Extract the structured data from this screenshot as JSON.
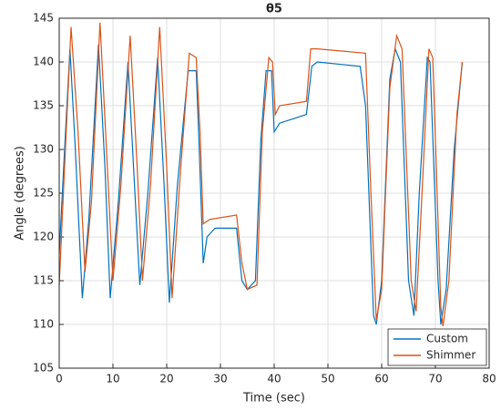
{
  "chart_data": {
    "type": "line",
    "title": "θ5",
    "xlabel": "Time (sec)",
    "ylabel": "Angle (degrees)",
    "xlim": [
      0,
      80
    ],
    "ylim": [
      105,
      145
    ],
    "xticks": [
      0,
      10,
      20,
      30,
      40,
      50,
      60,
      70,
      80
    ],
    "yticks": [
      105,
      110,
      115,
      120,
      125,
      130,
      135,
      140,
      145
    ],
    "grid": true,
    "legend": "southeast",
    "series": [
      {
        "name": "Custom",
        "color": "#0072BD",
        "x": [
          0,
          1,
          2,
          3,
          4.3,
          5.5,
          7.3,
          8.5,
          9.5,
          11,
          12.8,
          14,
          15,
          16.5,
          18.3,
          19.5,
          20.5,
          22,
          24,
          25.5,
          26,
          26.8,
          27.5,
          29,
          33,
          34,
          35,
          36.5,
          37.5,
          38.5,
          39.5,
          40,
          41,
          46,
          47,
          48,
          56,
          57,
          58.5,
          59,
          60,
          61.5,
          62.5,
          63.5,
          65,
          66,
          67,
          68.5,
          69,
          70.5,
          71,
          72,
          73.5,
          75
        ],
        "values": [
          118,
          130,
          141.5,
          130,
          113,
          122,
          142,
          128,
          113,
          124,
          140,
          126,
          114.5,
          125,
          140.5,
          126,
          112.5,
          126,
          139,
          139,
          131,
          117,
          120,
          121,
          121,
          115,
          114,
          115,
          131,
          139,
          139,
          132,
          133,
          134,
          139.5,
          140,
          139.5,
          135,
          111,
          110,
          115,
          138,
          141.5,
          140,
          115,
          111,
          125,
          140.5,
          140,
          115,
          110,
          114,
          130,
          140
        ]
      },
      {
        "name": "Shimmer",
        "color": "#D95319",
        "x": [
          0,
          1,
          2.2,
          3.5,
          4.8,
          6,
          7.6,
          8.8,
          10,
          11.5,
          13.2,
          14.5,
          15.5,
          17,
          18.7,
          20,
          21,
          22.5,
          24.2,
          25.5,
          26.2,
          26.8,
          28,
          33,
          34,
          35,
          36.8,
          37.8,
          39,
          39.7,
          40.2,
          41,
          46,
          46.8,
          48,
          57,
          58,
          59,
          60,
          61.5,
          62.8,
          63.8,
          65.5,
          66.4,
          67.5,
          68.8,
          69.5,
          71,
          71.4,
          72.5,
          74,
          75
        ],
        "values": [
          114.5,
          128,
          144,
          132,
          116,
          124,
          144.5,
          130,
          115,
          126,
          143,
          128,
          115,
          126,
          144,
          128,
          113,
          127,
          141,
          140.5,
          132,
          121.5,
          122,
          122.5,
          117,
          114,
          114.5,
          132,
          140.5,
          140,
          134,
          135,
          135.5,
          141.5,
          141.5,
          141,
          125,
          110.5,
          114,
          137,
          143,
          141.5,
          115,
          111.5,
          125,
          141.5,
          140.5,
          112,
          109.8,
          115,
          134,
          140
        ]
      }
    ]
  }
}
